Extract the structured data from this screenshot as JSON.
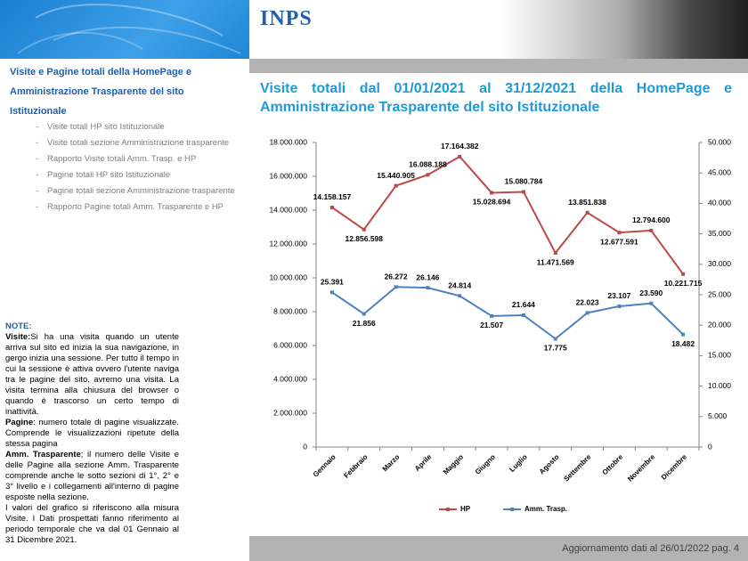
{
  "header": {
    "logo": "INPS"
  },
  "sidebar": {
    "title": "Visite e Pagine totali della HomePage e Amministrazione Trasparente del sito Istituzionale",
    "items": [
      "Visite totali HP sito Istituzionale",
      "Visite totali sezione Amministrazione trasparente",
      "Rapporto Visite totali Amm. Trasp. e HP",
      "Pagine totali HP sito Istituzionale",
      "Pagine totali sezione Amministrazione trasparente",
      "Rapporto Pagine totali Amm. Trasparente e HP"
    ]
  },
  "notes": {
    "heading": "NOTE:",
    "paragraphs": [
      {
        "term": "Visite:",
        "text": "Si ha una visita quando un utente arriva sul sito ed inizia la sua navigazione, in gergo inizia una sessione. Per tutto il tempo in cui la sessione è attiva ovvero l'utente naviga tra le pagine del sito, avremo una visita. La visita termina alla chiusura del browser o quando è trascorso un certo tempo di inattività."
      },
      {
        "term": "Pagine",
        "text": ": numero totale di pagine visualizzate. Comprende le visualizzazioni ripetute della stessa pagina"
      },
      {
        "term": "Amm. Trasparente",
        "text": "; il numero delle Visite e delle Pagine alla sezione Amm. Trasparente comprende anche le sotto sezioni di 1°, 2° e 3° livello e i collegamenti all'interno di pagine esposte nella sezione."
      },
      {
        "term": "",
        "text": "I valori del grafico si riferiscono alla misura Visite. I Dati prospettati fanno riferimento al periodo temporale che va dal 01 Gennaio al 31 Dicembre 2021."
      }
    ]
  },
  "footer": "Aggiornamento dati al 26/01/2022 pag. 4",
  "chart_data": {
    "type": "line",
    "title": "Visite totali dal 01/01/2021 al 31/12/2021 della HomePage e Amministrazione Trasparente del sito Istituzionale",
    "categories": [
      "Gennaio",
      "Febbraio",
      "Marzo",
      "Aprile",
      "Maggio",
      "Giugno",
      "Luglio",
      "Agosto",
      "Settembre",
      "Ottobre",
      "Novembre",
      "Dicembre"
    ],
    "series": [
      {
        "name": "HP",
        "color": "#b94a48",
        "values": [
          14158157,
          12856598,
          15440905,
          16088188,
          17164382,
          15028694,
          15080784,
          11471569,
          13851838,
          12677591,
          12794600,
          10221715
        ],
        "value_labels": [
          "14.158.157",
          "12.856.598",
          "15.440.905",
          "16.088.188",
          "17.164.382",
          "15.028.694",
          "15.080.784",
          "11.471.569",
          "13.851.838",
          "12.677.591",
          "12.794.600",
          "10.221.715"
        ]
      },
      {
        "name": "Amm. Trasp.",
        "color": "#4f81bd",
        "axis": "y2",
        "values": [
          25391,
          21856,
          26272,
          26146,
          24814,
          21507,
          21644,
          17775,
          22023,
          23107,
          23590,
          18482
        ],
        "value_labels": [
          "25.391",
          "21.856",
          "26.272",
          "26.146",
          "24.814",
          "21.507",
          "21.644",
          "17.775",
          "22.023",
          "23.107",
          "23.590",
          "18.482"
        ]
      }
    ],
    "ylim": [
      0,
      18000000
    ],
    "yticks": [
      0,
      {
        "value": 2000000,
        "label": "2.000.000"
      },
      {
        "value": 4000000,
        "label": "4.000.000"
      },
      {
        "value": 6000000,
        "label": "6.000.000"
      },
      {
        "value": 8000000,
        "label": "8.000.000"
      },
      {
        "value": 10000000,
        "label": "10.000.000"
      },
      {
        "value": 12000000,
        "label": "12.000.000"
      },
      {
        "value": 14000000,
        "label": "14.000.000"
      },
      {
        "value": 16000000,
        "label": "16.000.000"
      },
      {
        "value": 18000000,
        "label": "18.000.000"
      }
    ],
    "y2lim": [
      0,
      50000
    ],
    "y2ticks": [
      0,
      {
        "value": 5000,
        "label": "5.000"
      },
      {
        "value": 10000,
        "label": "10.000"
      },
      {
        "value": 15000,
        "label": "15.000"
      },
      {
        "value": 20000,
        "label": "20.000"
      },
      {
        "value": 25000,
        "label": "25.000"
      },
      {
        "value": 30000,
        "label": "30.000"
      },
      {
        "value": 35000,
        "label": "35.000"
      },
      {
        "value": 40000,
        "label": "40.000"
      },
      {
        "value": 45000,
        "label": "45.000"
      },
      {
        "value": 50000,
        "label": "50.000"
      }
    ],
    "legend": "bottom"
  }
}
